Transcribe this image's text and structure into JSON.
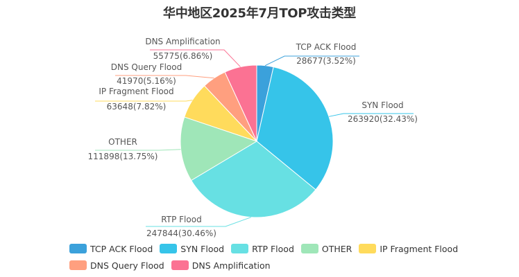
{
  "chart_data": {
    "type": "pie",
    "title": "华中地区2025年7月TOP攻击类型",
    "legend_position": "bottom",
    "slices": [
      {
        "name": "TCP ACK Flood",
        "value": 28677,
        "percent_label": "3.52%",
        "color": "#3ba1db"
      },
      {
        "name": "SYN Flood",
        "value": 263920,
        "percent_label": "32.43%",
        "color": "#36c4e9"
      },
      {
        "name": "RTP Flood",
        "value": 247844,
        "percent_label": "30.46%",
        "color": "#67e0e3"
      },
      {
        "name": "OTHER",
        "value": 111898,
        "percent_label": "13.75%",
        "color": "#9fe6b8"
      },
      {
        "name": "IP Fragment Flood",
        "value": 63648,
        "percent_label": "7.82%",
        "color": "#ffdb5c"
      },
      {
        "name": "DNS Query Flood",
        "value": 41970,
        "percent_label": "5.16%",
        "color": "#ff9f7f"
      },
      {
        "name": "DNS Amplification",
        "value": 55775,
        "percent_label": "6.86%",
        "color": "#fb7293"
      }
    ]
  }
}
